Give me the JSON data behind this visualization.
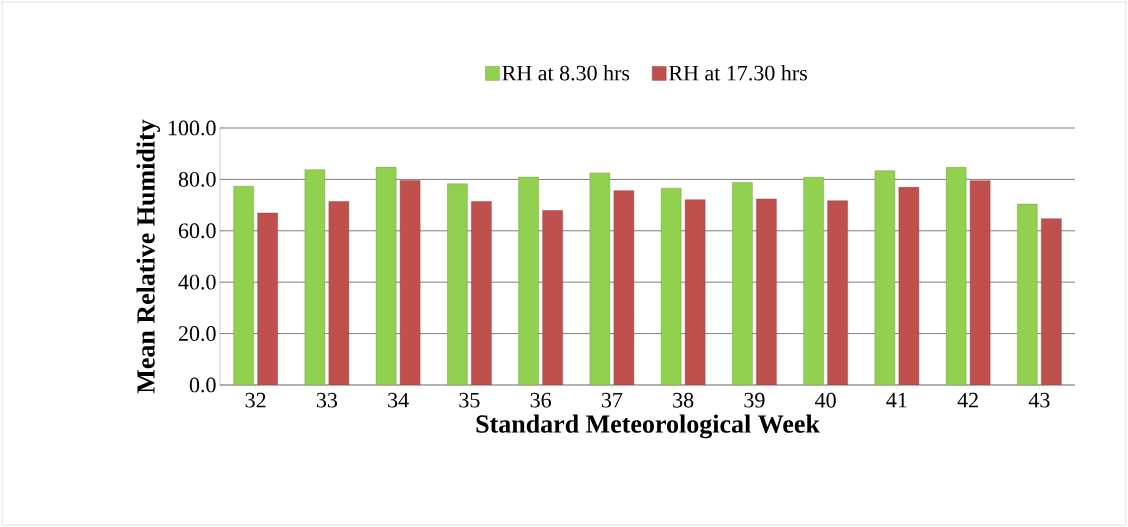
{
  "chart_data": {
    "type": "bar",
    "categories": [
      "32",
      "33",
      "34",
      "35",
      "36",
      "37",
      "38",
      "39",
      "40",
      "41",
      "42",
      "43"
    ],
    "series": [
      {
        "name": "RH at 8.30 hrs",
        "color": "#92d050",
        "values": [
          77.3,
          83.8,
          84.8,
          78.3,
          80.9,
          82.5,
          76.6,
          78.8,
          80.8,
          83.4,
          84.7,
          70.4
        ]
      },
      {
        "name": "RH at 17.30 hrs",
        "color": "#c0504d",
        "values": [
          66.9,
          71.4,
          79.6,
          71.4,
          67.9,
          75.6,
          72.1,
          72.4,
          71.7,
          76.9,
          79.5,
          64.7
        ]
      }
    ],
    "xlabel": "Standard Meteorological Week",
    "ylabel": "Mean Relative Humidity",
    "ylim": [
      0,
      100
    ],
    "yticks": [
      {
        "value": 0,
        "label": "0.0"
      },
      {
        "value": 20,
        "label": "20.0"
      },
      {
        "value": 40,
        "label": "40.0"
      },
      {
        "value": 60,
        "label": "60.0"
      },
      {
        "value": 80,
        "label": "80.0"
      },
      {
        "value": 100,
        "label": "100.0"
      }
    ],
    "grid": "y",
    "legend": "top"
  }
}
